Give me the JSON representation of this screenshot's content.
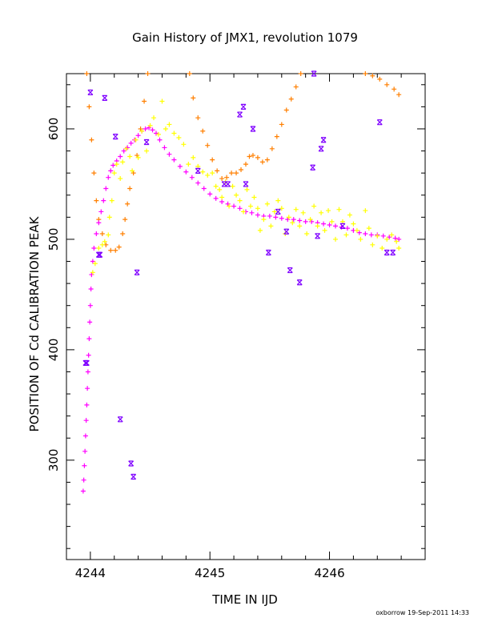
{
  "chart_data": {
    "type": "scatter",
    "title": "Gain History of JMX1, revolution 1079",
    "xlabel": "TIME IN IJD",
    "ylabel": "POSITION OF Cd CALIBRATION PEAK",
    "credit": "oxborrow 19-Sep-2011 14:33",
    "xlim": [
      4243.8,
      4246.8
    ],
    "ylim": [
      210,
      650
    ],
    "xticks": [
      4244,
      4245,
      4246
    ],
    "xtick_labels": [
      "4244",
      "4245",
      "4246"
    ],
    "yticks": [
      300,
      400,
      500,
      600
    ],
    "ytick_labels": [
      "300",
      "400",
      "500",
      "600"
    ],
    "grid": false,
    "series": [
      {
        "marker": "cross",
        "color": "#ff7f00",
        "points": [
          [
            4243.97,
            650
          ],
          [
            4243.99,
            620
          ],
          [
            4244.01,
            590
          ],
          [
            4244.03,
            560
          ],
          [
            4244.05,
            535
          ],
          [
            4244.07,
            518
          ],
          [
            4244.1,
            505
          ],
          [
            4244.13,
            495
          ],
          [
            4244.17,
            490
          ],
          [
            4244.21,
            490
          ],
          [
            4244.24,
            493
          ],
          [
            4244.27,
            505
          ],
          [
            4244.29,
            518
          ],
          [
            4244.31,
            532
          ],
          [
            4244.33,
            546
          ],
          [
            4244.36,
            560
          ],
          [
            4244.39,
            576
          ],
          [
            4244.42,
            600
          ],
          [
            4244.45,
            625
          ],
          [
            4244.48,
            650
          ],
          [
            4244.83,
            650
          ],
          [
            4244.86,
            628
          ],
          [
            4244.9,
            610
          ],
          [
            4244.94,
            598
          ],
          [
            4244.98,
            585
          ],
          [
            4245.02,
            572
          ],
          [
            4245.06,
            562
          ],
          [
            4245.1,
            555
          ],
          [
            4245.14,
            556
          ],
          [
            4245.18,
            560
          ],
          [
            4245.22,
            560
          ],
          [
            4245.26,
            563
          ],
          [
            4245.3,
            568
          ],
          [
            4245.33,
            575
          ],
          [
            4245.36,
            576
          ],
          [
            4245.4,
            574
          ],
          [
            4245.44,
            570
          ],
          [
            4245.48,
            572
          ],
          [
            4245.52,
            582
          ],
          [
            4245.56,
            593
          ],
          [
            4245.6,
            604
          ],
          [
            4245.64,
            617
          ],
          [
            4245.68,
            627
          ],
          [
            4245.72,
            638
          ],
          [
            4245.76,
            650
          ],
          [
            4246.3,
            650
          ],
          [
            4246.36,
            648
          ],
          [
            4246.42,
            645
          ],
          [
            4246.48,
            640
          ],
          [
            4246.54,
            636
          ],
          [
            4246.58,
            631
          ]
        ]
      },
      {
        "marker": "cross",
        "color": "#ff00ff",
        "points": [
          [
            4243.94,
            272
          ],
          [
            4243.945,
            282
          ],
          [
            4243.95,
            295
          ],
          [
            4243.955,
            308
          ],
          [
            4243.96,
            322
          ],
          [
            4243.965,
            336
          ],
          [
            4243.97,
            350
          ],
          [
            4243.975,
            365
          ],
          [
            4243.98,
            380
          ],
          [
            4243.985,
            395
          ],
          [
            4243.99,
            410
          ],
          [
            4243.995,
            425
          ],
          [
            4244.0,
            440
          ],
          [
            4244.005,
            455
          ],
          [
            4244.01,
            468
          ],
          [
            4244.02,
            480
          ],
          [
            4244.03,
            492
          ],
          [
            4244.05,
            505
          ],
          [
            4244.07,
            515
          ],
          [
            4244.09,
            525
          ],
          [
            4244.11,
            535
          ],
          [
            4244.13,
            546
          ],
          [
            4244.15,
            556
          ],
          [
            4244.17,
            562
          ],
          [
            4244.19,
            567
          ],
          [
            4244.22,
            571
          ],
          [
            4244.25,
            575
          ],
          [
            4244.28,
            580
          ],
          [
            4244.31,
            583
          ],
          [
            4244.34,
            587
          ],
          [
            4244.37,
            590
          ],
          [
            4244.4,
            594
          ],
          [
            4244.43,
            598
          ],
          [
            4244.46,
            600
          ],
          [
            4244.49,
            601
          ],
          [
            4244.52,
            599
          ],
          [
            4244.55,
            596
          ],
          [
            4244.58,
            590
          ],
          [
            4244.62,
            583
          ],
          [
            4244.66,
            577
          ],
          [
            4244.7,
            572
          ],
          [
            4244.75,
            566
          ],
          [
            4244.8,
            561
          ],
          [
            4244.85,
            556
          ],
          [
            4244.9,
            551
          ],
          [
            4244.95,
            546
          ],
          [
            4245.0,
            541
          ],
          [
            4245.05,
            537
          ],
          [
            4245.1,
            534
          ],
          [
            4245.15,
            532
          ],
          [
            4245.2,
            530
          ],
          [
            4245.25,
            528
          ],
          [
            4245.3,
            525
          ],
          [
            4245.35,
            524
          ],
          [
            4245.4,
            522
          ],
          [
            4245.45,
            521
          ],
          [
            4245.5,
            521
          ],
          [
            4245.55,
            520
          ],
          [
            4245.6,
            519
          ],
          [
            4245.65,
            518
          ],
          [
            4245.7,
            518
          ],
          [
            4245.75,
            517
          ],
          [
            4245.8,
            516
          ],
          [
            4245.85,
            516
          ],
          [
            4245.9,
            515
          ],
          [
            4245.95,
            514
          ],
          [
            4246.0,
            513
          ],
          [
            4246.05,
            512
          ],
          [
            4246.1,
            511
          ],
          [
            4246.15,
            510
          ],
          [
            4246.2,
            508
          ],
          [
            4246.25,
            506
          ],
          [
            4246.3,
            505
          ],
          [
            4246.35,
            504
          ],
          [
            4246.4,
            504
          ],
          [
            4246.45,
            503
          ],
          [
            4246.5,
            502
          ],
          [
            4246.55,
            501
          ],
          [
            4246.58,
            500
          ]
        ]
      },
      {
        "marker": "cross",
        "color": "#ffff00",
        "points": [
          [
            4244.02,
            470
          ],
          [
            4244.04,
            478
          ],
          [
            4244.07,
            492
          ],
          [
            4244.1,
            495
          ],
          [
            4244.12,
            498
          ],
          [
            4244.15,
            504
          ],
          [
            4244.16,
            520
          ],
          [
            4244.18,
            535
          ],
          [
            4244.2,
            560
          ],
          [
            4244.22,
            568
          ],
          [
            4244.25,
            555
          ],
          [
            4244.27,
            570
          ],
          [
            4244.3,
            582
          ],
          [
            4244.33,
            575
          ],
          [
            4244.35,
            562
          ],
          [
            4244.38,
            590
          ],
          [
            4244.4,
            574
          ],
          [
            4244.43,
            598
          ],
          [
            4244.47,
            580
          ],
          [
            4244.5,
            603
          ],
          [
            4244.53,
            610
          ],
          [
            4244.57,
            595
          ],
          [
            4244.6,
            625
          ],
          [
            4244.63,
            600
          ],
          [
            4244.66,
            604
          ],
          [
            4244.7,
            596
          ],
          [
            4244.74,
            592
          ],
          [
            4244.78,
            586
          ],
          [
            4244.82,
            568
          ],
          [
            4244.86,
            574
          ],
          [
            4244.9,
            566
          ],
          [
            4244.94,
            561
          ],
          [
            4244.98,
            558
          ],
          [
            4245.02,
            560
          ],
          [
            4245.05,
            548
          ],
          [
            4245.08,
            545
          ],
          [
            4245.1,
            538
          ],
          [
            4245.13,
            552
          ],
          [
            4245.16,
            530
          ],
          [
            4245.19,
            548
          ],
          [
            4245.22,
            540
          ],
          [
            4245.25,
            535
          ],
          [
            4245.28,
            525
          ],
          [
            4245.31,
            545
          ],
          [
            4245.34,
            530
          ],
          [
            4245.37,
            538
          ],
          [
            4245.4,
            528
          ],
          [
            4245.42,
            508
          ],
          [
            4245.45,
            518
          ],
          [
            4245.48,
            532
          ],
          [
            4245.51,
            512
          ],
          [
            4245.54,
            525
          ],
          [
            4245.57,
            535
          ],
          [
            4245.6,
            528
          ],
          [
            4245.63,
            505
          ],
          [
            4245.66,
            520
          ],
          [
            4245.69,
            515
          ],
          [
            4245.72,
            527
          ],
          [
            4245.75,
            512
          ],
          [
            4245.78,
            524
          ],
          [
            4245.81,
            505
          ],
          [
            4245.84,
            518
          ],
          [
            4245.87,
            530
          ],
          [
            4245.9,
            512
          ],
          [
            4245.93,
            524
          ],
          [
            4245.96,
            508
          ],
          [
            4245.99,
            526
          ],
          [
            4246.02,
            516
          ],
          [
            4246.05,
            500
          ],
          [
            4246.08,
            527
          ],
          [
            4246.11,
            516
          ],
          [
            4246.14,
            504
          ],
          [
            4246.17,
            522
          ],
          [
            4246.2,
            514
          ],
          [
            4246.23,
            508
          ],
          [
            4246.26,
            500
          ],
          [
            4246.3,
            526
          ],
          [
            4246.33,
            510
          ],
          [
            4246.36,
            495
          ],
          [
            4246.4,
            503
          ],
          [
            4246.44,
            492
          ],
          [
            4246.48,
            500
          ],
          [
            4246.52,
            504
          ],
          [
            4246.56,
            498
          ],
          [
            4246.58,
            492
          ]
        ]
      },
      {
        "marker": "x",
        "color": "#7f00ff",
        "points": [
          [
            4243.96,
            388
          ],
          [
            4243.97,
            388
          ],
          [
            4244.0,
            633
          ],
          [
            4244.07,
            486
          ],
          [
            4244.08,
            486
          ],
          [
            4244.12,
            628
          ],
          [
            4244.21,
            593
          ],
          [
            4244.25,
            337
          ],
          [
            4244.34,
            297
          ],
          [
            4244.36,
            285
          ],
          [
            4244.39,
            470
          ],
          [
            4244.47,
            588
          ],
          [
            4244.9,
            562
          ],
          [
            4245.12,
            550
          ],
          [
            4245.15,
            550
          ],
          [
            4245.25,
            613
          ],
          [
            4245.28,
            620
          ],
          [
            4245.3,
            550
          ],
          [
            4245.36,
            600
          ],
          [
            4245.49,
            488
          ],
          [
            4245.57,
            525
          ],
          [
            4245.64,
            507
          ],
          [
            4245.67,
            472
          ],
          [
            4245.75,
            461
          ],
          [
            4245.86,
            565
          ],
          [
            4245.87,
            650
          ],
          [
            4245.9,
            503
          ],
          [
            4245.93,
            582
          ],
          [
            4245.95,
            590
          ],
          [
            4246.11,
            512
          ],
          [
            4246.42,
            606
          ],
          [
            4246.48,
            488
          ],
          [
            4246.53,
            488
          ]
        ]
      }
    ]
  }
}
